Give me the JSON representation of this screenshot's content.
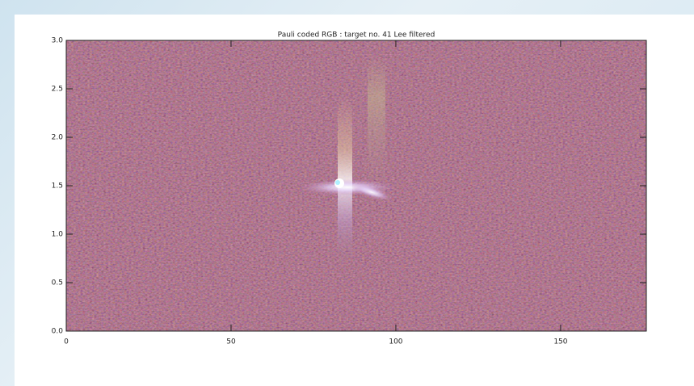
{
  "chart_data": {
    "type": "image",
    "title": "Pauli coded RGB : target no. 41 Lee filtered",
    "xlim": [
      0,
      176
    ],
    "xticks": [
      0,
      50,
      100,
      150
    ],
    "ylim": [
      0,
      3
    ],
    "yticks": [
      {
        "value": 0,
        "label": "0.0"
      },
      {
        "value": 0.5,
        "label": "0.5"
      },
      {
        "value": 1,
        "label": "1.0"
      },
      {
        "value": 1.5,
        "label": "1.5"
      },
      {
        "value": 2,
        "label": "2.0"
      },
      {
        "value": 2.5,
        "label": "2.5"
      },
      {
        "value": 3,
        "label": "3.0"
      }
    ]
  }
}
